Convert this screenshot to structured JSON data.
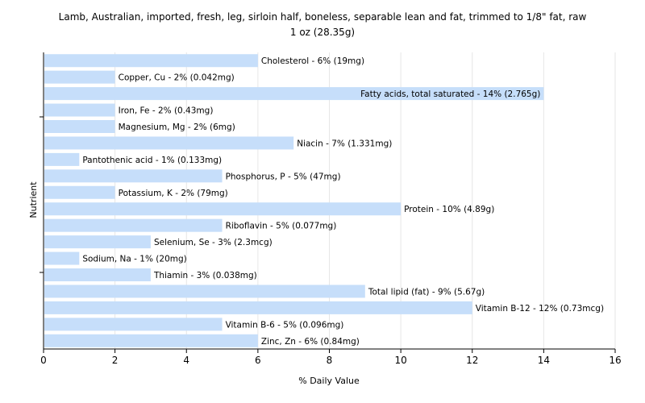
{
  "chart_data": {
    "type": "bar",
    "orientation": "horizontal",
    "title": "Lamb, Australian, imported, fresh, leg, sirloin half, boneless, separable lean and fat, trimmed to 1/8\" fat, raw",
    "subtitle": "1 oz (28.35g)",
    "xlabel": "% Daily Value",
    "ylabel": "Nutrient",
    "xlim": [
      0,
      16
    ],
    "xticks": [
      "0",
      "2",
      "4",
      "6",
      "8",
      "10",
      "12",
      "14",
      "16"
    ],
    "grid": true,
    "categories": [
      "Cholesterol",
      "Copper, Cu",
      "Fatty acids, total saturated",
      "Iron, Fe",
      "Magnesium, Mg",
      "Niacin",
      "Pantothenic acid",
      "Phosphorus, P",
      "Potassium, K",
      "Protein",
      "Riboflavin",
      "Selenium, Se",
      "Sodium, Na",
      "Thiamin",
      "Total lipid (fat)",
      "Vitamin B-12",
      "Vitamin B-6",
      "Zinc, Zn"
    ],
    "values": [
      6,
      2,
      14,
      2,
      2,
      7,
      1,
      5,
      2,
      10,
      5,
      3,
      1,
      3,
      9,
      12,
      5,
      6
    ],
    "labels": [
      "Cholesterol - 6% (19mg)",
      "Copper, Cu - 2% (0.042mg)",
      "Fatty acids, total saturated - 14% (2.765g)",
      "Iron, Fe - 2% (0.43mg)",
      "Magnesium, Mg - 2% (6mg)",
      "Niacin - 7% (1.331mg)",
      "Pantothenic acid - 1% (0.133mg)",
      "Phosphorus, P - 5% (47mg)",
      "Potassium, K - 2% (79mg)",
      "Protein - 10% (4.89g)",
      "Riboflavin - 5% (0.077mg)",
      "Selenium, Se - 3% (2.3mcg)",
      "Sodium, Na - 1% (20mg)",
      "Thiamin - 3% (0.038mg)",
      "Total lipid (fat) - 9% (5.67g)",
      "Vitamin B-12 - 12% (0.73mcg)",
      "Vitamin B-6 - 5% (0.096mg)",
      "Zinc, Zn - 6% (0.84mg)"
    ],
    "colors": {
      "bar": "#c6defa",
      "grid": "#e6e6e6",
      "axis": "#000000",
      "text": "#000000"
    }
  }
}
